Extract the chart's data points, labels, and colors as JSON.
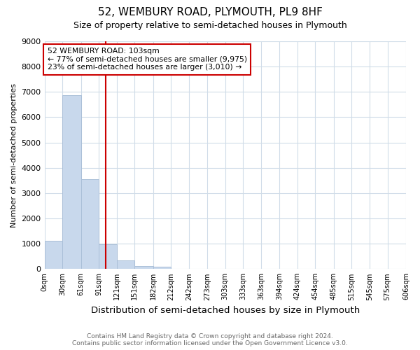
{
  "title_line1": "52, WEMBURY ROAD, PLYMOUTH, PL9 8HF",
  "title_line2": "Size of property relative to semi-detached houses in Plymouth",
  "xlabel": "Distribution of semi-detached houses by size in Plymouth",
  "ylabel": "Number of semi-detached properties",
  "bar_color": "#c8d8ec",
  "bar_edge_color": "#aabfd8",
  "bin_edges": [
    0,
    30,
    61,
    91,
    121,
    151,
    182,
    212,
    242,
    273,
    303,
    333,
    363,
    394,
    424,
    454,
    485,
    515,
    545,
    575,
    606
  ],
  "bar_values": [
    1125,
    6880,
    3560,
    970,
    330,
    120,
    95,
    15,
    5,
    0,
    0,
    0,
    0,
    0,
    0,
    0,
    0,
    0,
    0,
    0
  ],
  "red_line_x": 103,
  "annotation_title": "52 WEMBURY ROAD: 103sqm",
  "annotation_line2": "← 77% of semi-detached houses are smaller (9,975)",
  "annotation_line3": "23% of semi-detached houses are larger (3,010) →",
  "annotation_box_color": "#ffffff",
  "annotation_border_color": "#cc0000",
  "ylim": [
    0,
    9000
  ],
  "yticks": [
    0,
    1000,
    2000,
    3000,
    4000,
    5000,
    6000,
    7000,
    8000,
    9000
  ],
  "tick_labels": [
    "0sqm",
    "30sqm",
    "61sqm",
    "91sqm",
    "121sqm",
    "151sqm",
    "182sqm",
    "212sqm",
    "242sqm",
    "273sqm",
    "303sqm",
    "333sqm",
    "363sqm",
    "394sqm",
    "424sqm",
    "454sqm",
    "485sqm",
    "515sqm",
    "545sqm",
    "575sqm",
    "606sqm"
  ],
  "footer_line1": "Contains HM Land Registry data © Crown copyright and database right 2024.",
  "footer_line2": "Contains public sector information licensed under the Open Government Licence v3.0.",
  "bg_color": "#ffffff",
  "grid_color": "#d0dce8",
  "title_fontsize": 11,
  "subtitle_fontsize": 9
}
